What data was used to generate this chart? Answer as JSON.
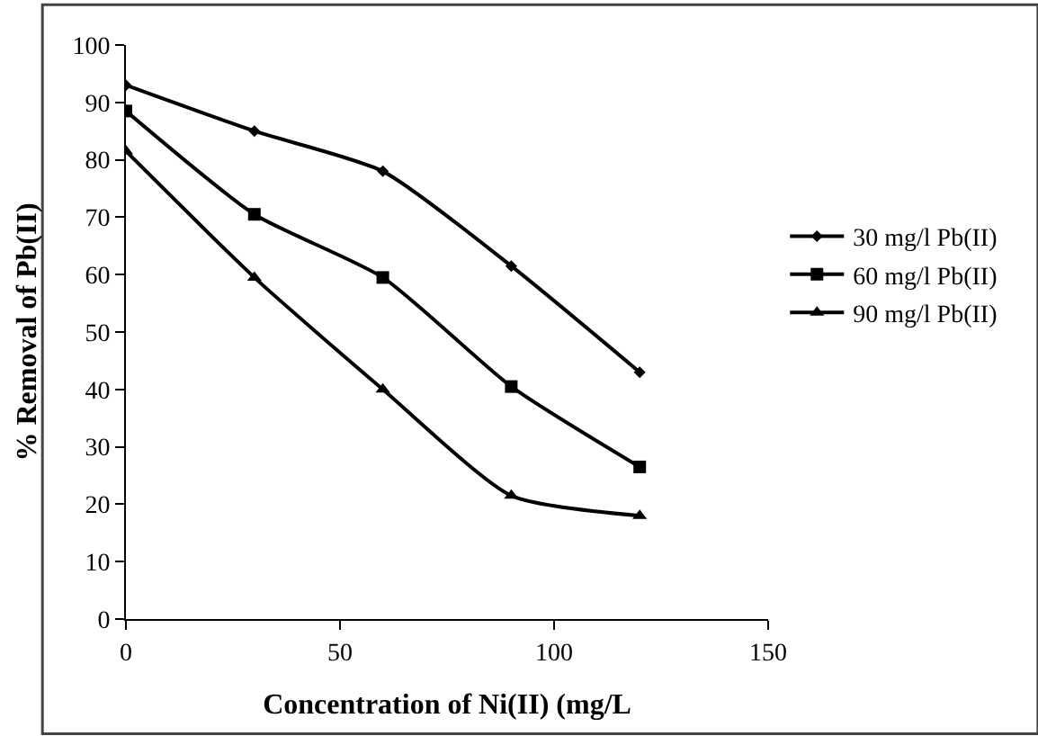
{
  "chart_data": {
    "type": "line",
    "xlabel": "Concentration of Ni(II) (mg/L",
    "ylabel": "% Removal of Pb(II)",
    "x": [
      0,
      30,
      60,
      90,
      120
    ],
    "series": [
      {
        "name": "30 mg/l Pb(II)",
        "color": "#000000",
        "marker": "diamond",
        "values": [
          93,
          85,
          78,
          61.5,
          43
        ]
      },
      {
        "name": "60 mg/l Pb(II)",
        "color": "#000000",
        "marker": "square",
        "values": [
          88.5,
          70.5,
          59.5,
          40.5,
          26.5
        ]
      },
      {
        "name": "90 mg/l Pb(II)",
        "color": "#000000",
        "marker": "triangle",
        "values": [
          81.5,
          59.5,
          40,
          21.5,
          18
        ]
      }
    ],
    "xlim": [
      0,
      150
    ],
    "xticks": [
      0,
      50,
      100,
      150
    ],
    "ylim": [
      0,
      100
    ],
    "yticks": [
      0,
      10,
      20,
      30,
      40,
      50,
      60,
      70,
      80,
      90,
      100
    ],
    "legend": "right",
    "line_style": "solid"
  }
}
